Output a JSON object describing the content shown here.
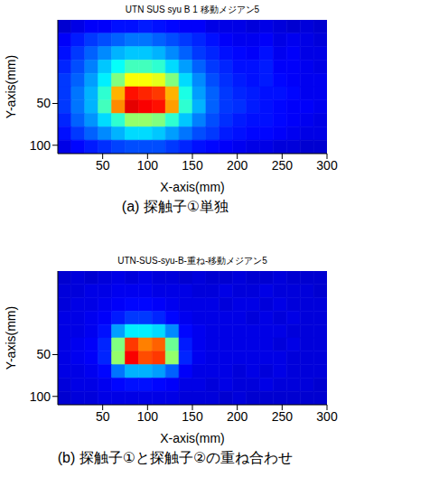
{
  "chart_data": [
    {
      "type": "heatmap",
      "title": "UTN SUS syu B 1 移動メジアン5",
      "caption": "(a) 探触子①単独",
      "xlabel": "X-axis(mm)",
      "ylabel": "Y-axis(mm)",
      "xlim": [
        0,
        300
      ],
      "ylim": [
        110,
        -50
      ],
      "xticks": [
        50,
        100,
        150,
        200,
        250,
        300
      ],
      "yticks": [
        50,
        100
      ],
      "xbins": [
        0,
        15,
        30,
        45,
        60,
        75,
        90,
        105,
        120,
        135,
        150,
        165,
        180,
        195,
        210,
        225,
        240,
        255,
        270,
        285,
        300
      ],
      "ybins": [
        -50,
        -34,
        -18,
        -2,
        14,
        30,
        46,
        62,
        78,
        94,
        110
      ],
      "zlim": [
        0,
        1
      ],
      "color": "jet",
      "cells": [
        [
          0.08,
          0.1,
          0.12,
          0.12,
          0.14,
          0.14,
          0.15,
          0.14,
          0.13,
          0.12,
          0.12,
          0.1,
          0.1,
          0.1,
          0.09,
          0.1,
          0.09,
          0.08,
          0.09,
          0.08
        ],
        [
          0.12,
          0.15,
          0.18,
          0.2,
          0.22,
          0.24,
          0.24,
          0.22,
          0.2,
          0.18,
          0.16,
          0.14,
          0.12,
          0.11,
          0.11,
          0.12,
          0.1,
          0.11,
          0.1,
          0.09
        ],
        [
          0.14,
          0.18,
          0.22,
          0.26,
          0.3,
          0.32,
          0.32,
          0.3,
          0.26,
          0.22,
          0.18,
          0.16,
          0.14,
          0.13,
          0.12,
          0.14,
          0.11,
          0.12,
          0.1,
          0.1
        ],
        [
          0.16,
          0.2,
          0.25,
          0.32,
          0.38,
          0.44,
          0.44,
          0.42,
          0.34,
          0.28,
          0.22,
          0.18,
          0.16,
          0.14,
          0.14,
          0.15,
          0.12,
          0.12,
          0.11,
          0.1
        ],
        [
          0.18,
          0.22,
          0.28,
          0.36,
          0.5,
          0.62,
          0.62,
          0.6,
          0.5,
          0.34,
          0.26,
          0.2,
          0.17,
          0.15,
          0.14,
          0.15,
          0.13,
          0.12,
          0.11,
          0.11
        ],
        [
          0.18,
          0.24,
          0.3,
          0.42,
          0.7,
          0.86,
          0.84,
          0.82,
          0.7,
          0.4,
          0.28,
          0.22,
          0.18,
          0.16,
          0.15,
          0.14,
          0.14,
          0.13,
          0.11,
          0.11
        ],
        [
          0.18,
          0.24,
          0.3,
          0.44,
          0.74,
          0.9,
          0.88,
          0.86,
          0.72,
          0.42,
          0.3,
          0.22,
          0.18,
          0.17,
          0.15,
          0.14,
          0.13,
          0.12,
          0.12,
          0.11
        ],
        [
          0.16,
          0.22,
          0.27,
          0.34,
          0.42,
          0.52,
          0.52,
          0.5,
          0.42,
          0.32,
          0.25,
          0.2,
          0.17,
          0.15,
          0.14,
          0.14,
          0.13,
          0.12,
          0.11,
          0.1
        ],
        [
          0.14,
          0.18,
          0.22,
          0.26,
          0.3,
          0.34,
          0.34,
          0.32,
          0.28,
          0.24,
          0.2,
          0.18,
          0.15,
          0.14,
          0.13,
          0.13,
          0.12,
          0.11,
          0.1,
          0.1
        ],
        [
          0.1,
          0.13,
          0.15,
          0.17,
          0.19,
          0.2,
          0.2,
          0.2,
          0.18,
          0.16,
          0.14,
          0.13,
          0.12,
          0.11,
          0.1,
          0.1,
          0.09,
          0.09,
          0.08,
          0.08
        ]
      ]
    },
    {
      "type": "heatmap",
      "title": "UTN-SUS-syu-B-重ね-移動メジアン5",
      "caption": "(b) 探触子①と探触子②の重ね合わせ",
      "xlabel": "X-axis(mm)",
      "ylabel": "Y-axis(mm)",
      "xlim": [
        0,
        300
      ],
      "ylim": [
        110,
        -50
      ],
      "xticks": [
        50,
        100,
        150,
        200,
        250,
        300
      ],
      "yticks": [
        50,
        100
      ],
      "xbins": [
        0,
        15,
        30,
        45,
        60,
        75,
        90,
        105,
        120,
        135,
        150,
        165,
        180,
        195,
        210,
        225,
        240,
        255,
        270,
        285,
        300
      ],
      "ybins": [
        -50,
        -34,
        -18,
        -2,
        14,
        30,
        46,
        62,
        78,
        94,
        110
      ],
      "zlim": [
        0,
        1
      ],
      "color": "jet",
      "cells": [
        [
          0.08,
          0.09,
          0.08,
          0.09,
          0.1,
          0.09,
          0.1,
          0.09,
          0.09,
          0.08,
          0.09,
          0.08,
          0.08,
          0.09,
          0.08,
          0.08,
          0.09,
          0.08,
          0.08,
          0.08
        ],
        [
          0.09,
          0.09,
          0.1,
          0.1,
          0.11,
          0.11,
          0.11,
          0.1,
          0.1,
          0.1,
          0.09,
          0.09,
          0.1,
          0.09,
          0.09,
          0.1,
          0.09,
          0.09,
          0.09,
          0.08
        ],
        [
          0.09,
          0.1,
          0.1,
          0.11,
          0.12,
          0.13,
          0.13,
          0.12,
          0.11,
          0.1,
          0.1,
          0.1,
          0.09,
          0.1,
          0.1,
          0.09,
          0.1,
          0.09,
          0.09,
          0.09
        ],
        [
          0.1,
          0.1,
          0.11,
          0.12,
          0.15,
          0.18,
          0.18,
          0.16,
          0.13,
          0.11,
          0.1,
          0.1,
          0.1,
          0.1,
          0.09,
          0.1,
          0.09,
          0.1,
          0.09,
          0.09
        ],
        [
          0.1,
          0.1,
          0.11,
          0.14,
          0.28,
          0.36,
          0.36,
          0.34,
          0.26,
          0.13,
          0.11,
          0.1,
          0.1,
          0.1,
          0.1,
          0.1,
          0.1,
          0.09,
          0.09,
          0.09
        ],
        [
          0.1,
          0.11,
          0.12,
          0.16,
          0.5,
          0.82,
          0.75,
          0.78,
          0.48,
          0.15,
          0.11,
          0.1,
          0.1,
          0.1,
          0.1,
          0.1,
          0.09,
          0.1,
          0.09,
          0.09
        ],
        [
          0.1,
          0.11,
          0.12,
          0.16,
          0.52,
          0.88,
          0.8,
          0.82,
          0.52,
          0.16,
          0.11,
          0.1,
          0.1,
          0.1,
          0.1,
          0.1,
          0.1,
          0.09,
          0.09,
          0.09
        ],
        [
          0.1,
          0.1,
          0.11,
          0.13,
          0.24,
          0.3,
          0.3,
          0.28,
          0.22,
          0.12,
          0.1,
          0.1,
          0.1,
          0.09,
          0.1,
          0.09,
          0.1,
          0.09,
          0.09,
          0.09
        ],
        [
          0.09,
          0.1,
          0.1,
          0.11,
          0.13,
          0.14,
          0.14,
          0.13,
          0.12,
          0.1,
          0.1,
          0.09,
          0.1,
          0.09,
          0.09,
          0.1,
          0.09,
          0.09,
          0.09,
          0.08
        ],
        [
          0.08,
          0.09,
          0.09,
          0.1,
          0.1,
          0.1,
          0.1,
          0.1,
          0.1,
          0.09,
          0.09,
          0.09,
          0.08,
          0.09,
          0.08,
          0.08,
          0.08,
          0.08,
          0.08,
          0.08
        ]
      ]
    }
  ]
}
